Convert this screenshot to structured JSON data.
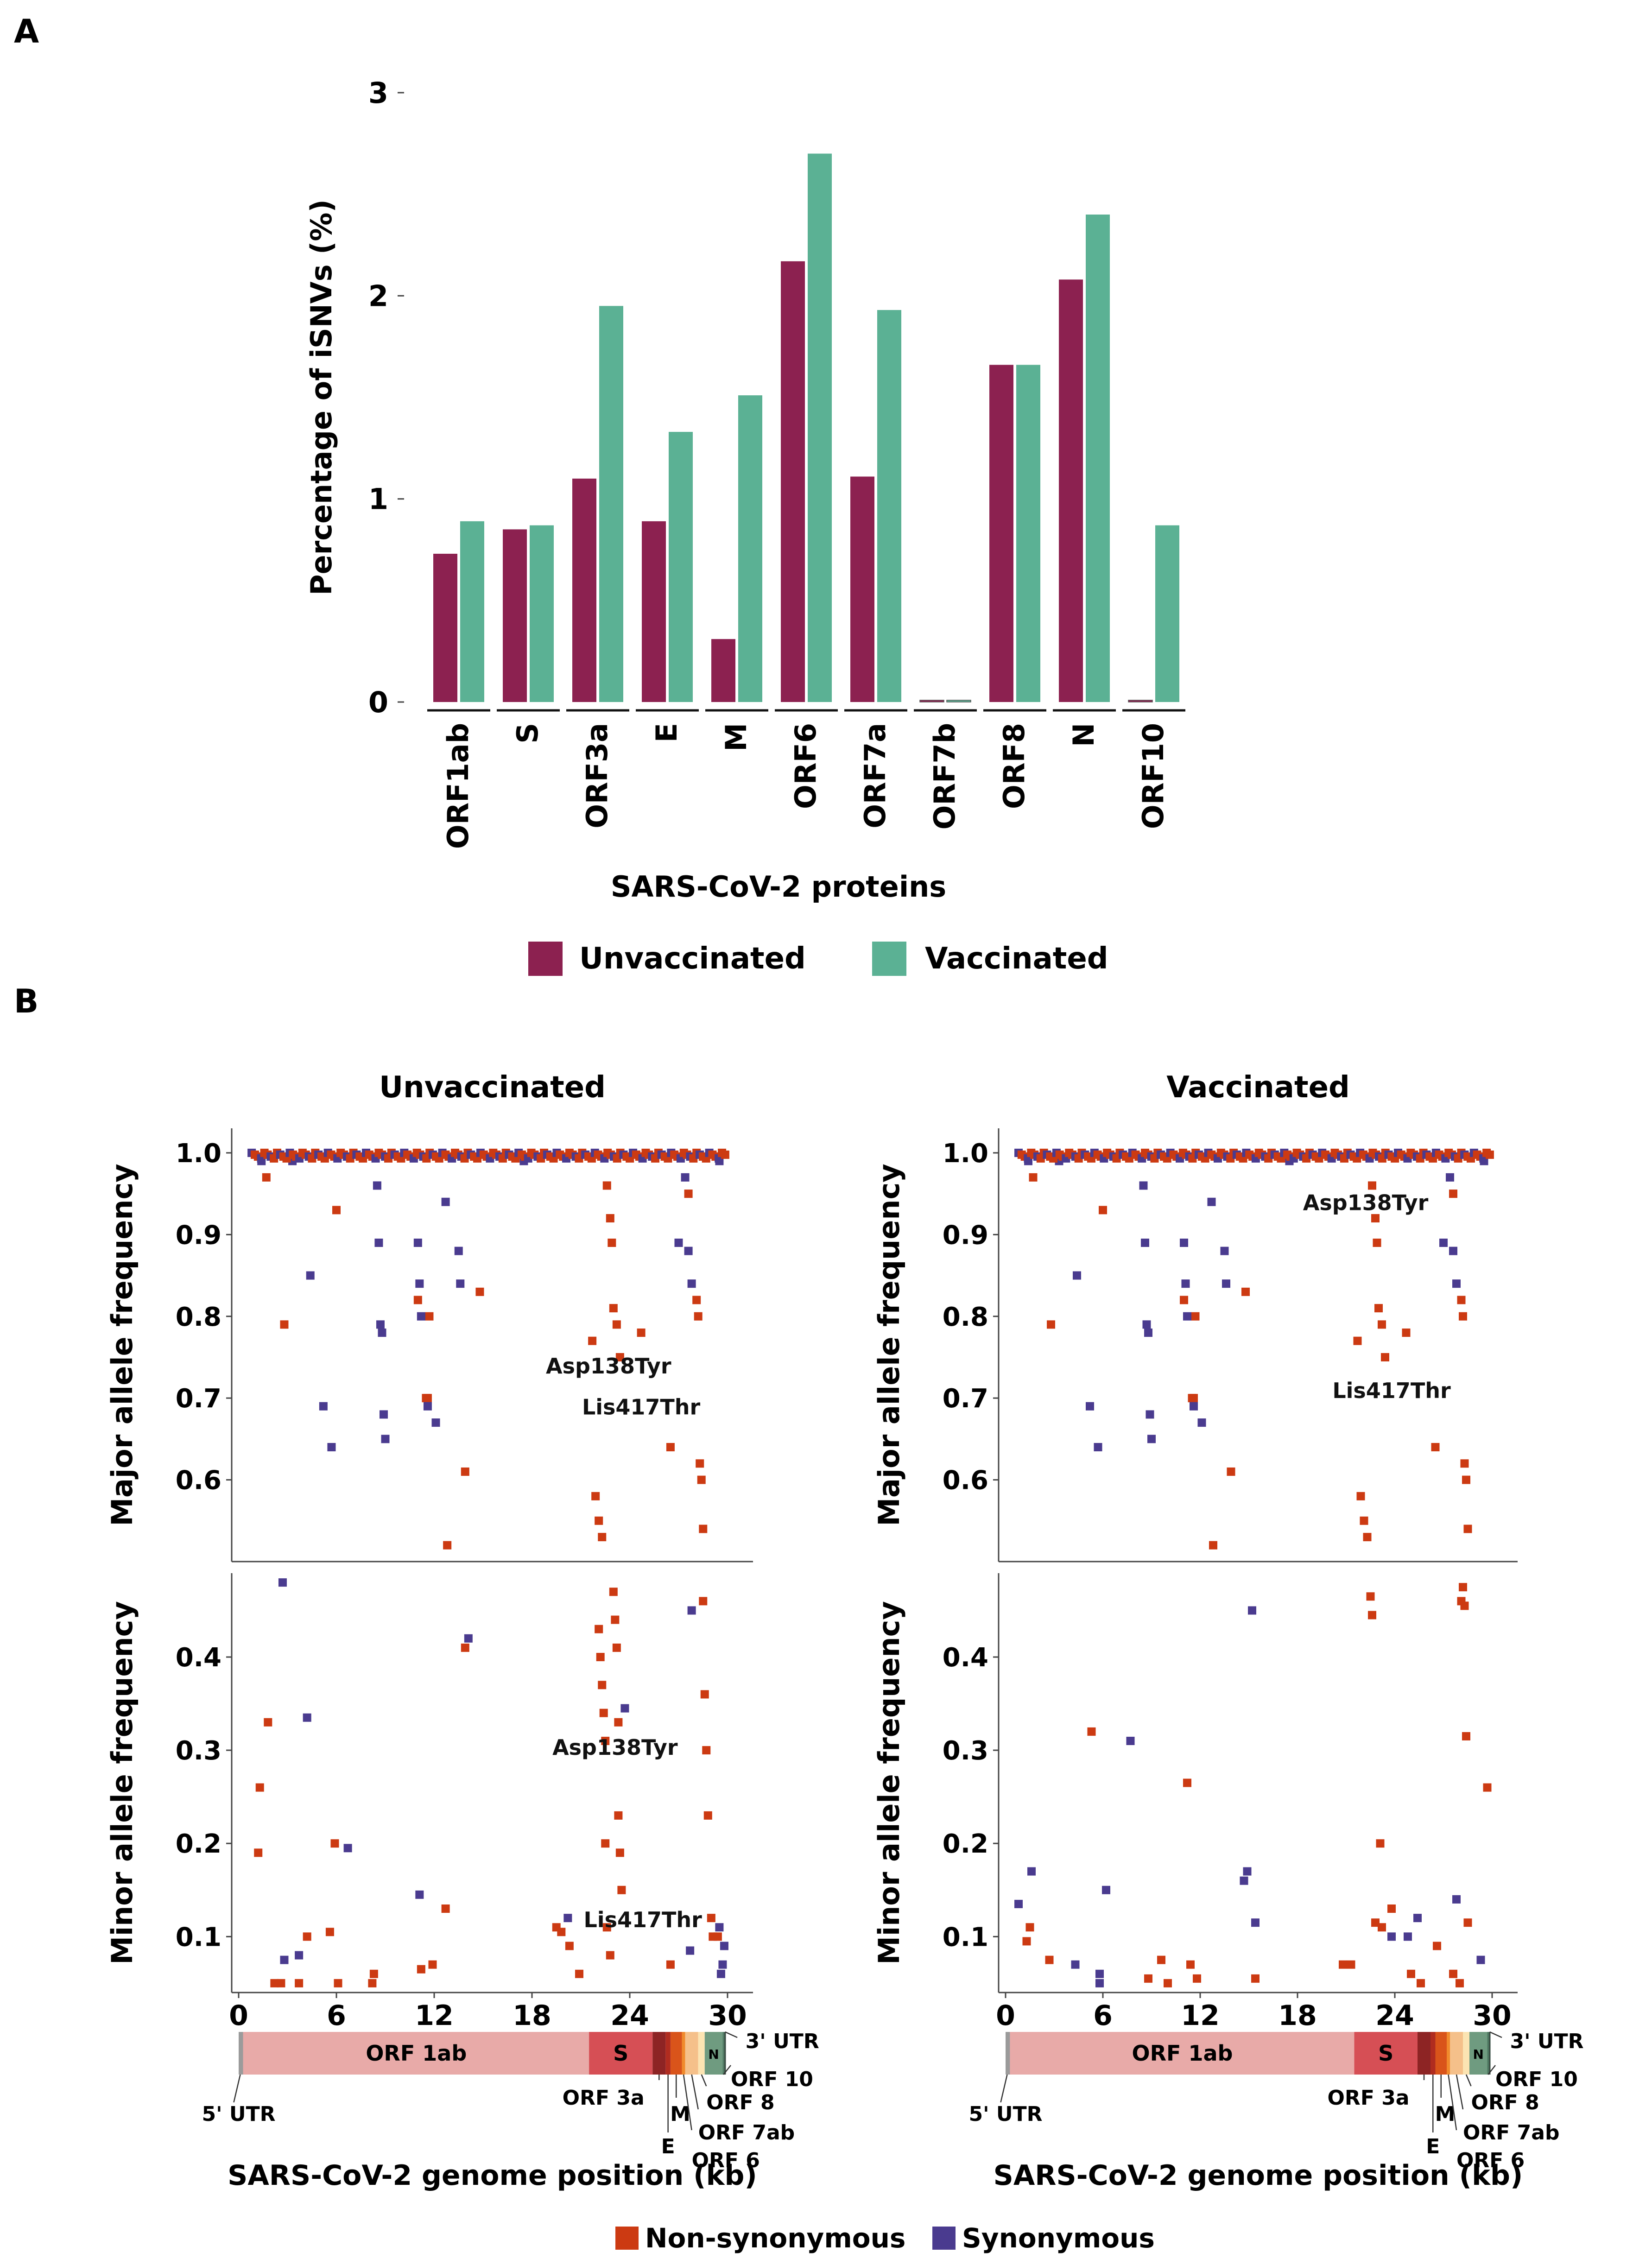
{
  "panel_labels": {
    "a": "A",
    "b": "B"
  },
  "colors": {
    "unvaccinated": "#8c2150",
    "vaccinated": "#5bb194",
    "nonsynonymous": "#cc3a12",
    "synonymous": "#4a3b8f"
  },
  "legend_a": {
    "unvaccinated": "Unvaccinated",
    "vaccinated": "Vaccinated"
  },
  "legend_b": {
    "nonsyn": "Non-synonymous",
    "syn": "Synonymous"
  },
  "chart_data": [
    {
      "type": "bar",
      "ylabel": "Percentage of iSNVs (%)",
      "xlabel": "SARS-CoV-2 proteins",
      "ylim": [
        0,
        3
      ],
      "yticks": [
        "0",
        "1",
        "2",
        "3"
      ],
      "categories": [
        "ORF1ab",
        "S",
        "ORF3a",
        "E",
        "M",
        "ORF6",
        "ORF7a",
        "ORF7b",
        "ORF8",
        "N",
        "ORF10"
      ],
      "series": [
        {
          "name": "Unvaccinated",
          "values": [
            0.73,
            0.85,
            1.1,
            0.89,
            0.31,
            2.17,
            1.11,
            0.0,
            1.66,
            2.08,
            0.0
          ]
        },
        {
          "name": "Vaccinated",
          "values": [
            0.89,
            0.87,
            1.95,
            1.33,
            1.51,
            2.7,
            1.93,
            0.0,
            1.66,
            2.4,
            0.87
          ]
        }
      ]
    },
    {
      "type": "scatter",
      "title": "Unvaccinated",
      "xlabel": "SARS-CoV-2 genome position (kb)",
      "xticks": [
        "0",
        "6",
        "12",
        "18",
        "24",
        "30"
      ],
      "xlim": [
        0,
        30.5
      ],
      "top": {
        "ylabel": "Major allele frequency",
        "ylim": [
          0.5,
          1.03
        ],
        "yticks": [
          "0.6",
          "0.7",
          "0.8",
          "0.9",
          "1.0"
        ],
        "annotations": [
          {
            "text": "Asp138Tyr",
            "x": 22.7,
            "y": 0.73
          },
          {
            "text": "Lis417Thr",
            "x": 24.7,
            "y": 0.68
          }
        ],
        "nonsyn": [
          [
            1.7,
            0.97
          ],
          [
            2.8,
            0.79
          ],
          [
            6,
            0.93
          ],
          [
            11.5,
            0.7
          ],
          [
            11.6,
            0.7
          ],
          [
            12.8,
            0.52
          ],
          [
            13.9,
            0.61
          ],
          [
            14.8,
            0.83
          ],
          [
            21.7,
            0.77
          ],
          [
            21.9,
            0.58
          ],
          [
            22.1,
            0.55
          ],
          [
            22.3,
            0.53
          ],
          [
            22.6,
            0.96
          ],
          [
            22.8,
            0.92
          ],
          [
            22.9,
            0.89
          ],
          [
            23,
            0.81
          ],
          [
            23.2,
            0.79
          ],
          [
            23.4,
            0.75
          ],
          [
            24.7,
            0.78
          ],
          [
            26.5,
            0.64
          ],
          [
            27.6,
            0.95
          ],
          [
            28.1,
            0.82
          ],
          [
            28.2,
            0.8
          ],
          [
            28.3,
            0.62
          ],
          [
            28.4,
            0.6
          ],
          [
            28.5,
            0.54
          ],
          [
            11,
            0.82
          ],
          [
            11.7,
            0.8
          ]
        ],
        "syn": [
          [
            1.4,
            0.99
          ],
          [
            4.4,
            0.85
          ],
          [
            5.2,
            0.69
          ],
          [
            5.7,
            0.64
          ],
          [
            8.5,
            0.96
          ],
          [
            8.6,
            0.89
          ],
          [
            8.7,
            0.79
          ],
          [
            8.8,
            0.78
          ],
          [
            8.9,
            0.68
          ],
          [
            9,
            0.65
          ],
          [
            11,
            0.89
          ],
          [
            11.1,
            0.84
          ],
          [
            11.2,
            0.8
          ],
          [
            11.6,
            0.69
          ],
          [
            12.1,
            0.67
          ],
          [
            12.7,
            0.94
          ],
          [
            13.5,
            0.88
          ],
          [
            13.6,
            0.84
          ],
          [
            27,
            0.89
          ],
          [
            27.4,
            0.97
          ],
          [
            27.6,
            0.88
          ],
          [
            27.8,
            0.84
          ],
          [
            29.5,
            0.99
          ],
          [
            3.3,
            0.99
          ],
          [
            17.5,
            0.99
          ]
        ]
      },
      "bottom": {
        "ylabel": "Minor allele frequency",
        "ylim": [
          0.04,
          0.49
        ],
        "yticks": [
          "0.1",
          "0.2",
          "0.3",
          "0.4"
        ],
        "annotations": [
          {
            "text": "Asp138Tyr",
            "x": 23.1,
            "y": 0.295
          },
          {
            "text": "Lis417Thr",
            "x": 24.8,
            "y": 0.11
          }
        ],
        "nonsyn": [
          [
            1.2,
            0.19
          ],
          [
            1.3,
            0.26
          ],
          [
            1.8,
            0.33
          ],
          [
            2.2,
            0.05
          ],
          [
            2.6,
            0.05
          ],
          [
            3.7,
            0.05
          ],
          [
            4.2,
            0.1
          ],
          [
            5.6,
            0.105
          ],
          [
            5.9,
            0.2
          ],
          [
            6.1,
            0.05
          ],
          [
            8.2,
            0.05
          ],
          [
            8.3,
            0.06
          ],
          [
            11.2,
            0.065
          ],
          [
            11.9,
            0.07
          ],
          [
            12.7,
            0.13
          ],
          [
            13.9,
            0.41
          ],
          [
            19.5,
            0.11
          ],
          [
            19.8,
            0.105
          ],
          [
            20.3,
            0.09
          ],
          [
            20.9,
            0.06
          ],
          [
            22.1,
            0.43
          ],
          [
            22.2,
            0.4
          ],
          [
            22.3,
            0.37
          ],
          [
            22.4,
            0.34
          ],
          [
            22.5,
            0.31
          ],
          [
            22.5,
            0.2
          ],
          [
            22.6,
            0.11
          ],
          [
            22.8,
            0.08
          ],
          [
            23,
            0.47
          ],
          [
            23.1,
            0.44
          ],
          [
            23.2,
            0.41
          ],
          [
            23.3,
            0.33
          ],
          [
            23.3,
            0.23
          ],
          [
            23.4,
            0.19
          ],
          [
            23.5,
            0.15
          ],
          [
            26.5,
            0.07
          ],
          [
            28.5,
            0.46
          ],
          [
            28.6,
            0.36
          ],
          [
            28.7,
            0.3
          ],
          [
            28.8,
            0.23
          ],
          [
            29,
            0.12
          ],
          [
            29.1,
            0.1
          ],
          [
            29.4,
            0.1
          ]
        ],
        "syn": [
          [
            2.7,
            0.48
          ],
          [
            2.8,
            0.075
          ],
          [
            3.7,
            0.08
          ],
          [
            4.2,
            0.335
          ],
          [
            6.7,
            0.195
          ],
          [
            11.1,
            0.145
          ],
          [
            14.1,
            0.42
          ],
          [
            20.2,
            0.12
          ],
          [
            23.7,
            0.345
          ],
          [
            27.7,
            0.085
          ],
          [
            27.8,
            0.45
          ],
          [
            29.5,
            0.11
          ],
          [
            29.6,
            0.06
          ],
          [
            29.7,
            0.07
          ],
          [
            29.8,
            0.09
          ]
        ]
      },
      "genome_labels": {
        "orf1ab": "ORF 1ab",
        "s": "S",
        "n": "N",
        "utr5": "5' UTR",
        "utr3": "3' UTR",
        "orf3a": "ORF 3a",
        "e": "E",
        "m": "M",
        "orf8": "ORF 8",
        "orf7ab": "ORF 7ab",
        "orf6": "ORF 6",
        "orf10": "ORF 10"
      }
    },
    {
      "type": "scatter",
      "title": "Vaccinated",
      "xlabel": "SARS-CoV-2 genome position (kb)",
      "xticks": [
        "0",
        "6",
        "12",
        "18",
        "24",
        "30"
      ],
      "xlim": [
        0,
        30.5
      ],
      "top": {
        "ylabel": "Major allele frequency",
        "ylim": [
          0.5,
          1.03
        ],
        "yticks": [
          "0.6",
          "0.7",
          "0.8",
          "0.9",
          "1.0"
        ],
        "annotations": [
          {
            "text": "Asp138Tyr",
            "x": 22.2,
            "y": 0.93
          },
          {
            "text": "Lis417Thr",
            "x": 23.8,
            "y": 0.7
          }
        ],
        "nonsyn": [
          [
            1.7,
            0.97
          ],
          [
            2.8,
            0.79
          ],
          [
            6,
            0.93
          ],
          [
            11.5,
            0.7
          ],
          [
            11.6,
            0.7
          ],
          [
            12.8,
            0.52
          ],
          [
            13.9,
            0.61
          ],
          [
            14.8,
            0.83
          ],
          [
            21.7,
            0.77
          ],
          [
            21.9,
            0.58
          ],
          [
            22.1,
            0.55
          ],
          [
            22.3,
            0.53
          ],
          [
            22.6,
            0.96
          ],
          [
            22.8,
            0.92
          ],
          [
            22.9,
            0.89
          ],
          [
            23,
            0.81
          ],
          [
            23.2,
            0.79
          ],
          [
            23.4,
            0.75
          ],
          [
            24.7,
            0.78
          ],
          [
            26.5,
            0.64
          ],
          [
            27.6,
            0.95
          ],
          [
            28.1,
            0.82
          ],
          [
            28.2,
            0.8
          ],
          [
            28.3,
            0.62
          ],
          [
            28.4,
            0.6
          ],
          [
            28.5,
            0.54
          ],
          [
            11,
            0.82
          ],
          [
            11.7,
            0.8
          ]
        ],
        "syn": [
          [
            1.4,
            0.99
          ],
          [
            4.4,
            0.85
          ],
          [
            5.2,
            0.69
          ],
          [
            5.7,
            0.64
          ],
          [
            8.5,
            0.96
          ],
          [
            8.6,
            0.89
          ],
          [
            8.7,
            0.79
          ],
          [
            8.8,
            0.78
          ],
          [
            8.9,
            0.68
          ],
          [
            9,
            0.65
          ],
          [
            11,
            0.89
          ],
          [
            11.1,
            0.84
          ],
          [
            11.2,
            0.8
          ],
          [
            11.6,
            0.69
          ],
          [
            12.1,
            0.67
          ],
          [
            12.7,
            0.94
          ],
          [
            13.5,
            0.88
          ],
          [
            13.6,
            0.84
          ],
          [
            27,
            0.89
          ],
          [
            27.4,
            0.97
          ],
          [
            27.6,
            0.88
          ],
          [
            27.8,
            0.84
          ],
          [
            29.5,
            0.99
          ],
          [
            3.3,
            0.99
          ],
          [
            17.5,
            0.99
          ]
        ]
      },
      "bottom": {
        "ylabel": "Minor allele frequency",
        "ylim": [
          0.04,
          0.49
        ],
        "yticks": [
          "0.1",
          "0.2",
          "0.3",
          "0.4"
        ],
        "annotations": [],
        "nonsyn": [
          [
            1.3,
            0.095
          ],
          [
            1.5,
            0.11
          ],
          [
            2.7,
            0.075
          ],
          [
            5.3,
            0.32
          ],
          [
            8.8,
            0.055
          ],
          [
            9.6,
            0.075
          ],
          [
            10,
            0.05
          ],
          [
            11.2,
            0.265
          ],
          [
            11.4,
            0.07
          ],
          [
            11.8,
            0.055
          ],
          [
            15.4,
            0.055
          ],
          [
            20.8,
            0.07
          ],
          [
            21.3,
            0.07
          ],
          [
            22.5,
            0.465
          ],
          [
            22.6,
            0.445
          ],
          [
            22.8,
            0.115
          ],
          [
            23.1,
            0.2
          ],
          [
            23.2,
            0.11
          ],
          [
            23.8,
            0.13
          ],
          [
            25,
            0.06
          ],
          [
            25.6,
            0.05
          ],
          [
            26.6,
            0.09
          ],
          [
            27.6,
            0.06
          ],
          [
            28.1,
            0.46
          ],
          [
            28.2,
            0.475
          ],
          [
            28.3,
            0.455
          ],
          [
            28.4,
            0.315
          ],
          [
            28.5,
            0.115
          ],
          [
            29.7,
            0.26
          ],
          [
            28,
            0.05
          ]
        ],
        "syn": [
          [
            0.8,
            0.135
          ],
          [
            1.6,
            0.17
          ],
          [
            4.3,
            0.07
          ],
          [
            5.8,
            0.05
          ],
          [
            5.8,
            0.06
          ],
          [
            6.2,
            0.15
          ],
          [
            7.7,
            0.31
          ],
          [
            14.7,
            0.16
          ],
          [
            14.9,
            0.17
          ],
          [
            15.2,
            0.45
          ],
          [
            15.4,
            0.115
          ],
          [
            23.8,
            0.1
          ],
          [
            24.8,
            0.1
          ],
          [
            25.4,
            0.12
          ],
          [
            27.8,
            0.14
          ],
          [
            29.3,
            0.075
          ]
        ]
      },
      "genome_labels": {
        "orf1ab": "ORF 1ab",
        "s": "S",
        "n": "N",
        "utr5": "5' UTR",
        "utr3": "3' UTR",
        "orf3a": "ORF 3a",
        "e": "E",
        "m": "M",
        "orf8": "ORF 8",
        "orf7ab": "ORF 7ab",
        "orf6": "ORF 6",
        "orf10": "ORF 10"
      }
    }
  ]
}
